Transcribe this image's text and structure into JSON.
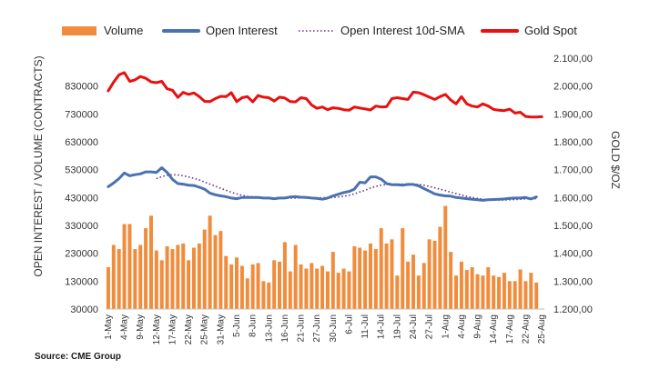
{
  "chart_data": {
    "type": "bar-line-combo",
    "legend": [
      {
        "name": "Volume",
        "style": "bar",
        "color": "#f08c3c"
      },
      {
        "name": "Open Interest",
        "style": "line",
        "color": "#4a72b0"
      },
      {
        "name": "Open Interest 10d-SMA",
        "style": "dotted",
        "color": "#6a2a8a"
      },
      {
        "name": "Gold Spot",
        "style": "line",
        "color": "#e81010"
      }
    ],
    "ylabel_left": "OPEN INTEREST / VOLUME (CONTRACTS)",
    "ylabel_right": "GOLD $/OZ",
    "ylim_left": [
      30000,
      930000
    ],
    "ylim_right": [
      1200,
      2100
    ],
    "yticks_left": [
      "830000",
      "730000",
      "630000",
      "530000",
      "430000",
      "330000",
      "230000",
      "130000",
      "30000"
    ],
    "yticks_right": [
      "2.100,00",
      "2.000,00",
      "1.900,00",
      "1.800,00",
      "1.700,00",
      "1.600,00",
      "1.500,00",
      "1.400,00",
      "1.300,00",
      "1.200,00"
    ],
    "xticks": [
      "1-May",
      "4-May",
      "9-May",
      "12-May",
      "17-May",
      "22-May",
      "25-May",
      "31-May",
      "5-Jun",
      "8-Jun",
      "13-Jun",
      "16-Jun",
      "21-Jun",
      "27-Jun",
      "30-Jun",
      "6-Jul",
      "11-Jul",
      "14-Jul",
      "19-Jul",
      "24-Jul",
      "27-Jul",
      "1-Aug",
      "4-Aug",
      "9-Aug",
      "14-Aug",
      "17-Aug",
      "22-Aug",
      "25-Aug"
    ],
    "n_slots": 82,
    "tick_every": 3,
    "volume": [
      180000,
      260000,
      245000,
      335000,
      335000,
      245000,
      260000,
      320000,
      365000,
      240000,
      205000,
      255000,
      245000,
      260000,
      265000,
      205000,
      250000,
      265000,
      315000,
      365000,
      295000,
      310000,
      220000,
      190000,
      215000,
      185000,
      140000,
      190000,
      195000,
      130000,
      125000,
      205000,
      200000,
      270000,
      165000,
      260000,
      190000,
      175000,
      195000,
      175000,
      185000,
      165000,
      235000,
      160000,
      175000,
      165000,
      255000,
      250000,
      240000,
      265000,
      245000,
      320000,
      265000,
      280000,
      150000,
      320000,
      200000,
      225000,
      150000,
      195000,
      280000,
      275000,
      325000,
      400000,
      235000,
      150000,
      200000,
      170000,
      180000,
      155000,
      150000,
      180000,
      150000,
      145000,
      160000,
      130000,
      130000,
      172000,
      130000,
      160000,
      125000,
      null
    ],
    "open_interest": [
      469000,
      482000,
      498000,
      518000,
      508000,
      512000,
      515000,
      522000,
      522000,
      520000,
      537000,
      520000,
      495000,
      480000,
      478000,
      474000,
      473000,
      467000,
      460000,
      446000,
      440000,
      436000,
      433000,
      428000,
      426000,
      430000,
      430000,
      430000,
      430000,
      428000,
      428000,
      426000,
      428000,
      428000,
      432000,
      433000,
      431000,
      430000,
      428000,
      427000,
      424000,
      428000,
      436000,
      442000,
      448000,
      452000,
      460000,
      485000,
      483000,
      504000,
      504000,
      496000,
      480000,
      476000,
      476000,
      474000,
      477000,
      477000,
      472000,
      462000,
      453000,
      443000,
      439000,
      436000,
      435000,
      430000,
      428000,
      426000,
      424000,
      422000,
      420000,
      422000,
      423000,
      424000,
      425000,
      427000,
      428000,
      428000,
      430000,
      425000,
      432000,
      null
    ],
    "oi_sma": [
      null,
      null,
      null,
      null,
      null,
      null,
      null,
      null,
      null,
      498000,
      505000,
      510000,
      512000,
      511000,
      508000,
      504000,
      499000,
      493000,
      486000,
      478000,
      471000,
      463000,
      456000,
      449000,
      443000,
      438000,
      434000,
      432000,
      430000,
      429000,
      428000,
      428000,
      428000,
      428000,
      428000,
      428000,
      429000,
      429000,
      429000,
      429000,
      429000,
      429000,
      430000,
      432000,
      435000,
      438000,
      443000,
      450000,
      456000,
      464000,
      470000,
      474000,
      477000,
      478000,
      478000,
      478000,
      478000,
      478000,
      477000,
      474000,
      470000,
      465000,
      460000,
      455000,
      449000,
      444000,
      439000,
      434000,
      430000,
      427000,
      424000,
      422000,
      421000,
      421000,
      421000,
      422000,
      423000,
      424000,
      425000,
      426000,
      426000,
      null
    ],
    "gold": [
      1983,
      2014,
      2040,
      2048,
      2017,
      2022,
      2034,
      2028,
      2015,
      2012,
      2017,
      1990,
      1985,
      1959,
      1977,
      1970,
      1975,
      1962,
      1945,
      1944,
      1955,
      1963,
      1962,
      1976,
      1944,
      1958,
      1962,
      1943,
      1966,
      1960,
      1958,
      1946,
      1960,
      1957,
      1944,
      1943,
      1958,
      1955,
      1932,
      1920,
      1925,
      1915,
      1922,
      1920,
      1915,
      1913,
      1925,
      1921,
      1918,
      1914,
      1928,
      1925,
      1926,
      1955,
      1958,
      1955,
      1952,
      1978,
      1976,
      1969,
      1960,
      1952,
      1962,
      1970,
      1950,
      1936,
      1962,
      1936,
      1928,
      1925,
      1936,
      1928,
      1916,
      1913,
      1912,
      1917,
      1903,
      1906,
      1891,
      1889,
      1889,
      1890
    ]
  },
  "source_label": "Source: CME Group"
}
